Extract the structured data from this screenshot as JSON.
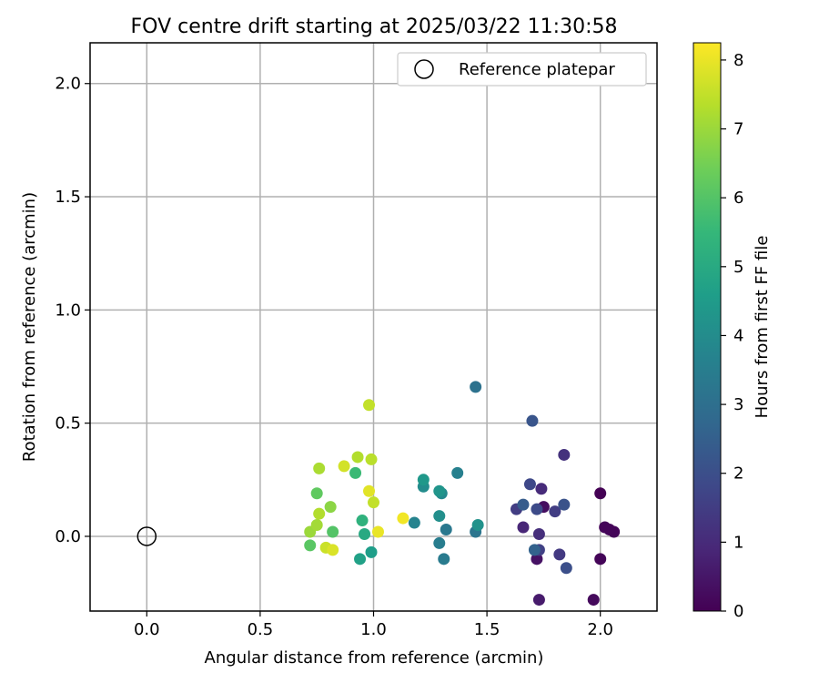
{
  "chart_data": {
    "type": "scatter",
    "title": "FOV centre drift starting at 2025/03/22 11:30:58",
    "xlabel": "Angular distance from reference (arcmin)",
    "ylabel": "Rotation from reference (arcmin)",
    "xlim": [
      -0.25,
      2.25
    ],
    "ylim": [
      -0.33,
      2.18
    ],
    "xticks": [
      0.0,
      0.5,
      1.0,
      1.5,
      2.0
    ],
    "xtick_labels": [
      "0.0",
      "0.5",
      "1.0",
      "1.5",
      "2.0"
    ],
    "yticks": [
      0.0,
      0.5,
      1.0,
      1.5,
      2.0
    ],
    "ytick_labels": [
      "0.0",
      "0.5",
      "1.0",
      "1.5",
      "2.0"
    ],
    "grid": true,
    "legend": {
      "placement": "top-right",
      "entries": [
        "Reference platepar"
      ]
    },
    "reference_point": {
      "x": 0.0,
      "y": 0.0,
      "marker": "open-circle"
    },
    "colorbar": {
      "label": "Hours from first FF file",
      "colormap": "viridis",
      "range": [
        0,
        8.25
      ],
      "ticks": [
        0,
        1,
        2,
        3,
        4,
        5,
        6,
        7,
        8
      ],
      "tick_labels": [
        "0",
        "1",
        "2",
        "3",
        "4",
        "5",
        "6",
        "7",
        "8"
      ]
    },
    "points": [
      {
        "x": 2.0,
        "y": 0.19,
        "c": 0.0
      },
      {
        "x": 2.02,
        "y": 0.04,
        "c": 0.1
      },
      {
        "x": 2.06,
        "y": 0.02,
        "c": 0.1
      },
      {
        "x": 2.04,
        "y": 0.03,
        "c": 0.1
      },
      {
        "x": 2.0,
        "y": -0.1,
        "c": 0.1
      },
      {
        "x": 1.97,
        "y": -0.28,
        "c": 0.2
      },
      {
        "x": 1.75,
        "y": 0.13,
        "c": 0.3
      },
      {
        "x": 1.72,
        "y": -0.1,
        "c": 0.4
      },
      {
        "x": 1.73,
        "y": -0.28,
        "c": 0.6
      },
      {
        "x": 1.66,
        "y": 0.04,
        "c": 0.9
      },
      {
        "x": 1.74,
        "y": 0.21,
        "c": 1.0
      },
      {
        "x": 1.73,
        "y": 0.01,
        "c": 1.1
      },
      {
        "x": 1.84,
        "y": 0.36,
        "c": 1.2
      },
      {
        "x": 1.82,
        "y": -0.08,
        "c": 1.4
      },
      {
        "x": 1.8,
        "y": 0.11,
        "c": 1.5
      },
      {
        "x": 1.63,
        "y": 0.12,
        "c": 1.5
      },
      {
        "x": 1.73,
        "y": -0.06,
        "c": 1.6
      },
      {
        "x": 1.69,
        "y": 0.23,
        "c": 1.8
      },
      {
        "x": 1.72,
        "y": 0.12,
        "c": 1.9
      },
      {
        "x": 1.85,
        "y": -0.14,
        "c": 2.0
      },
      {
        "x": 1.84,
        "y": 0.14,
        "c": 2.1
      },
      {
        "x": 1.7,
        "y": 0.51,
        "c": 2.2
      },
      {
        "x": 1.66,
        "y": 0.14,
        "c": 2.4
      },
      {
        "x": 1.71,
        "y": -0.06,
        "c": 2.6
      },
      {
        "x": 1.45,
        "y": 0.66,
        "c": 3.1
      },
      {
        "x": 1.45,
        "y": 0.02,
        "c": 3.2
      },
      {
        "x": 1.32,
        "y": 0.03,
        "c": 3.3
      },
      {
        "x": 1.31,
        "y": -0.1,
        "c": 3.4
      },
      {
        "x": 1.29,
        "y": -0.03,
        "c": 3.5
      },
      {
        "x": 1.37,
        "y": 0.28,
        "c": 3.6
      },
      {
        "x": 1.18,
        "y": 0.06,
        "c": 3.7
      },
      {
        "x": 1.3,
        "y": 0.19,
        "c": 3.9
      },
      {
        "x": 1.22,
        "y": 0.22,
        "c": 4.0
      },
      {
        "x": 1.29,
        "y": 0.09,
        "c": 4.1
      },
      {
        "x": 1.46,
        "y": 0.05,
        "c": 4.2
      },
      {
        "x": 1.29,
        "y": 0.2,
        "c": 4.3
      },
      {
        "x": 1.22,
        "y": 0.25,
        "c": 4.4
      },
      {
        "x": 0.99,
        "y": -0.07,
        "c": 4.6
      },
      {
        "x": 0.94,
        "y": -0.1,
        "c": 4.7
      },
      {
        "x": 0.96,
        "y": 0.01,
        "c": 5.0
      },
      {
        "x": 0.95,
        "y": 0.07,
        "c": 5.3
      },
      {
        "x": 0.92,
        "y": 0.28,
        "c": 5.6
      },
      {
        "x": 0.82,
        "y": 0.02,
        "c": 6.0
      },
      {
        "x": 0.72,
        "y": -0.04,
        "c": 6.1
      },
      {
        "x": 0.75,
        "y": 0.19,
        "c": 6.2
      },
      {
        "x": 0.81,
        "y": 0.13,
        "c": 6.8
      },
      {
        "x": 0.72,
        "y": 0.02,
        "c": 7.0
      },
      {
        "x": 0.75,
        "y": 0.05,
        "c": 7.1
      },
      {
        "x": 0.76,
        "y": 0.3,
        "c": 7.2
      },
      {
        "x": 0.76,
        "y": 0.1,
        "c": 7.3
      },
      {
        "x": 0.93,
        "y": 0.35,
        "c": 7.3
      },
      {
        "x": 0.99,
        "y": 0.34,
        "c": 7.4
      },
      {
        "x": 1.0,
        "y": 0.15,
        "c": 7.5
      },
      {
        "x": 0.98,
        "y": 0.58,
        "c": 7.5
      },
      {
        "x": 0.79,
        "y": -0.05,
        "c": 7.6
      },
      {
        "x": 0.87,
        "y": 0.31,
        "c": 7.7
      },
      {
        "x": 0.82,
        "y": -0.06,
        "c": 7.8
      },
      {
        "x": 0.98,
        "y": 0.2,
        "c": 7.9
      },
      {
        "x": 1.02,
        "y": 0.02,
        "c": 8.0
      },
      {
        "x": 1.13,
        "y": 0.08,
        "c": 8.1
      }
    ]
  }
}
